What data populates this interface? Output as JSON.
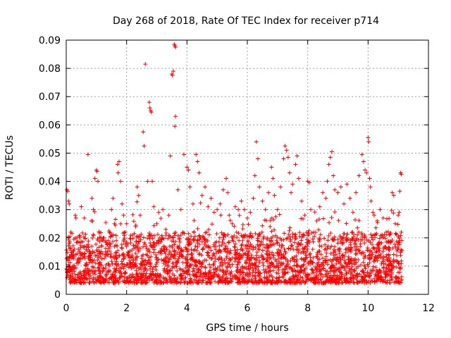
{
  "chart_data": {
    "type": "scatter",
    "title": "Day 268 of 2018, Rate Of TEC Index for receiver p714",
    "xlabel": "GPS time / hours",
    "ylabel": "ROTI / TECUs",
    "xlim": [
      0,
      12
    ],
    "ylim": [
      0,
      0.09
    ],
    "xticks": [
      0,
      2,
      4,
      6,
      8,
      10,
      12
    ],
    "xtick_labels": [
      "0",
      "2",
      "4",
      "6",
      "8",
      "10",
      "12"
    ],
    "yticks": [
      0,
      0.01,
      0.02,
      0.03,
      0.04,
      0.05,
      0.06,
      0.07,
      0.08,
      0.09
    ],
    "ytick_labels": [
      "0",
      "0.01",
      "0.02",
      "0.03",
      "0.04",
      "0.05",
      "0.06",
      "0.07",
      "0.08",
      "0.09"
    ],
    "grid": true,
    "marker": "+",
    "color": "#ff0000",
    "series": [
      {
        "name": "ROTI",
        "points": [
          [
            0.02,
            0.037
          ],
          [
            0.05,
            0.0365
          ],
          [
            0.08,
            0.033
          ],
          [
            0.1,
            0.032
          ],
          [
            0.04,
            0.008
          ],
          [
            0.06,
            0.012
          ],
          [
            0.1,
            0.018
          ],
          [
            0.15,
            0.022
          ],
          [
            0.2,
            0.009
          ],
          [
            0.25,
            0.014
          ],
          [
            0.3,
            0.028
          ],
          [
            0.35,
            0.011
          ],
          [
            0.4,
            0.016
          ],
          [
            0.45,
            0.02
          ],
          [
            0.5,
            0.031
          ],
          [
            0.55,
            0.013
          ],
          [
            0.6,
            0.027
          ],
          [
            0.65,
            0.009
          ],
          [
            0.7,
            0.017
          ],
          [
            0.72,
            0.0495
          ],
          [
            0.8,
            0.012
          ],
          [
            0.85,
            0.034
          ],
          [
            0.9,
            0.03
          ],
          [
            0.95,
            0.041
          ],
          [
            1.0,
            0.044
          ],
          [
            1.02,
            0.0435
          ],
          [
            1.05,
            0.04
          ],
          [
            1.1,
            0.011
          ],
          [
            1.15,
            0.02
          ],
          [
            1.2,
            0.008
          ],
          [
            1.3,
            0.015
          ],
          [
            1.4,
            0.019
          ],
          [
            1.5,
            0.03
          ],
          [
            1.55,
            0.034
          ],
          [
            1.6,
            0.025
          ],
          [
            1.7,
            0.046
          ],
          [
            1.72,
            0.043
          ],
          [
            1.75,
            0.047
          ],
          [
            1.8,
            0.04
          ],
          [
            1.85,
            0.032
          ],
          [
            1.9,
            0.028
          ],
          [
            1.95,
            0.022
          ],
          [
            2.0,
            0.017
          ],
          [
            2.1,
            0.012
          ],
          [
            2.2,
            0.021
          ],
          [
            2.3,
            0.024
          ],
          [
            2.35,
            0.038
          ],
          [
            2.4,
            0.035
          ],
          [
            2.45,
            0.028
          ],
          [
            2.55,
            0.0575
          ],
          [
            2.58,
            0.0525
          ],
          [
            2.62,
            0.0815
          ],
          [
            2.7,
            0.04
          ],
          [
            2.75,
            0.068
          ],
          [
            2.77,
            0.066
          ],
          [
            2.8,
            0.065
          ],
          [
            2.82,
            0.0645
          ],
          [
            2.85,
            0.04
          ],
          [
            2.9,
            0.031
          ],
          [
            3.0,
            0.025
          ],
          [
            3.1,
            0.02
          ],
          [
            3.2,
            0.03
          ],
          [
            3.3,
            0.023
          ],
          [
            3.4,
            0.028
          ],
          [
            3.45,
            0.049
          ],
          [
            3.5,
            0.078
          ],
          [
            3.52,
            0.0775
          ],
          [
            3.55,
            0.079
          ],
          [
            3.58,
            0.0885
          ],
          [
            3.6,
            0.088
          ],
          [
            3.62,
            0.0875
          ],
          [
            3.62,
            0.063
          ],
          [
            3.6,
            0.0595
          ],
          [
            3.7,
            0.037
          ],
          [
            3.8,
            0.03
          ],
          [
            3.9,
            0.0495
          ],
          [
            4.0,
            0.045
          ],
          [
            4.05,
            0.044
          ],
          [
            4.1,
            0.038
          ],
          [
            4.2,
            0.032
          ],
          [
            4.3,
            0.0495
          ],
          [
            4.35,
            0.047
          ],
          [
            4.4,
            0.043
          ],
          [
            4.5,
            0.035
          ],
          [
            4.6,
            0.038
          ],
          [
            4.7,
            0.031
          ],
          [
            4.8,
            0.034
          ],
          [
            4.9,
            0.029
          ],
          [
            5.0,
            0.03
          ],
          [
            5.1,
            0.032
          ],
          [
            5.2,
            0.037
          ],
          [
            5.3,
            0.041
          ],
          [
            5.35,
            0.036
          ],
          [
            5.4,
            0.028
          ],
          [
            5.5,
            0.025
          ],
          [
            5.6,
            0.031
          ],
          [
            5.7,
            0.03
          ],
          [
            5.8,
            0.033
          ],
          [
            5.9,
            0.03
          ],
          [
            6.0,
            0.027
          ],
          [
            6.1,
            0.029
          ],
          [
            6.2,
            0.034
          ],
          [
            6.25,
            0.042
          ],
          [
            6.3,
            0.054
          ],
          [
            6.35,
            0.048
          ],
          [
            6.4,
            0.038
          ],
          [
            6.5,
            0.033
          ],
          [
            6.6,
            0.03
          ],
          [
            6.7,
            0.036
          ],
          [
            6.8,
            0.045
          ],
          [
            6.85,
            0.041
          ],
          [
            6.9,
            0.035
          ],
          [
            7.0,
            0.03
          ],
          [
            7.1,
            0.038
          ],
          [
            7.2,
            0.048
          ],
          [
            7.25,
            0.0525
          ],
          [
            7.3,
            0.051
          ],
          [
            7.35,
            0.0485
          ],
          [
            7.4,
            0.043
          ],
          [
            7.45,
            0.036
          ],
          [
            7.5,
            0.039
          ],
          [
            7.6,
            0.046
          ],
          [
            7.65,
            0.049
          ],
          [
            7.7,
            0.041
          ],
          [
            7.8,
            0.033
          ],
          [
            7.9,
            0.028
          ],
          [
            8.0,
            0.04
          ],
          [
            8.05,
            0.0395
          ],
          [
            8.1,
            0.03
          ],
          [
            8.2,
            0.022
          ],
          [
            8.3,
            0.026
          ],
          [
            8.4,
            0.031
          ],
          [
            8.5,
            0.036
          ],
          [
            8.6,
            0.034
          ],
          [
            8.65,
            0.04
          ],
          [
            8.7,
            0.046
          ],
          [
            8.75,
            0.0485
          ],
          [
            8.8,
            0.0505
          ],
          [
            8.85,
            0.042
          ],
          [
            8.9,
            0.037
          ],
          [
            9.0,
            0.036
          ],
          [
            9.1,
            0.038
          ],
          [
            9.2,
            0.032
          ],
          [
            9.3,
            0.039
          ],
          [
            9.4,
            0.034
          ],
          [
            9.5,
            0.029
          ],
          [
            9.6,
            0.036
          ],
          [
            9.7,
            0.042
          ],
          [
            9.8,
            0.0495
          ],
          [
            9.85,
            0.047
          ],
          [
            9.9,
            0.044
          ],
          [
            9.95,
            0.043
          ],
          [
            10.0,
            0.0555
          ],
          [
            10.02,
            0.054
          ],
          [
            10.05,
            0.041
          ],
          [
            10.08,
            0.038
          ],
          [
            10.1,
            0.033
          ],
          [
            10.2,
            0.028
          ],
          [
            10.3,
            0.026
          ],
          [
            10.4,
            0.03
          ],
          [
            10.5,
            0.027
          ],
          [
            10.6,
            0.022
          ],
          [
            10.7,
            0.021
          ],
          [
            10.8,
            0.036
          ],
          [
            10.85,
            0.035
          ],
          [
            10.9,
            0.025
          ],
          [
            11.0,
            0.028
          ],
          [
            11.05,
            0.0365
          ],
          [
            11.08,
            0.043
          ],
          [
            11.1,
            0.0425
          ],
          [
            11.1,
            0.022
          ]
        ],
        "dense_band": {
          "x_range": [
            0,
            11.12
          ],
          "y_typical": [
            0.004,
            0.022
          ]
        }
      }
    ]
  }
}
